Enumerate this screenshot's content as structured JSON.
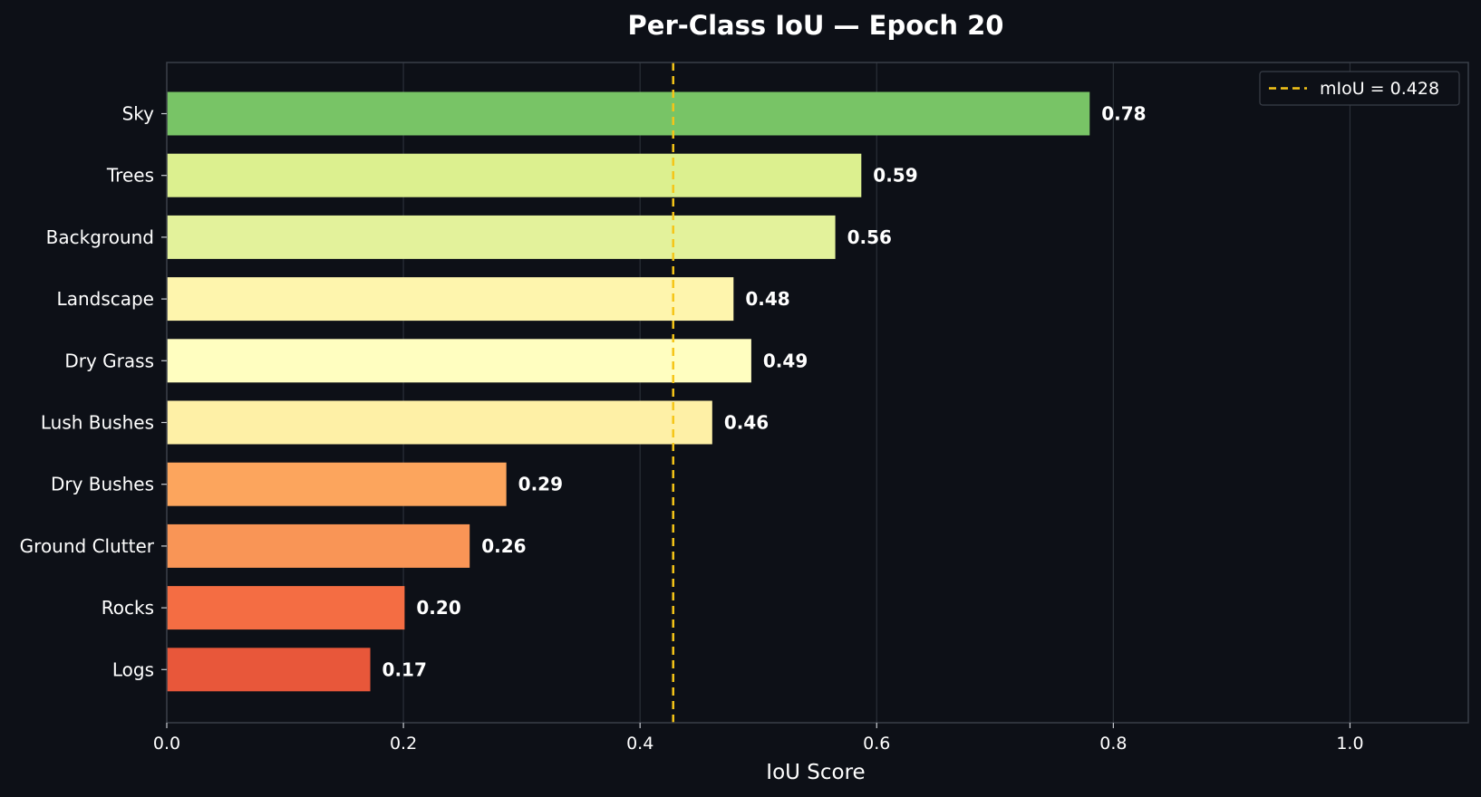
{
  "chart_data": {
    "type": "bar",
    "orientation": "horizontal",
    "title": "Per-Class IoU — Epoch 20",
    "xlabel": "IoU Score",
    "ylabel": "",
    "xlim": [
      0,
      1.1
    ],
    "xticks": [
      0.0,
      0.2,
      0.4,
      0.6,
      0.8,
      1.0
    ],
    "xtick_labels": [
      "0.0",
      "0.2",
      "0.4",
      "0.6",
      "0.8",
      "1.0"
    ],
    "grid": "vertical",
    "categories": [
      "Sky",
      "Trees",
      "Background",
      "Landscape",
      "Dry Grass",
      "Lush Bushes",
      "Dry Bushes",
      "Ground Clutter",
      "Rocks",
      "Logs"
    ],
    "values": [
      0.78,
      0.587,
      0.565,
      0.479,
      0.494,
      0.461,
      0.287,
      0.256,
      0.201,
      0.172
    ],
    "value_labels": [
      "0.78",
      "0.59",
      "0.56",
      "0.48",
      "0.49",
      "0.46",
      "0.29",
      "0.26",
      "0.20",
      "0.17"
    ],
    "bar_colors": [
      "#78c466",
      "#dcf08f",
      "#e3f29b",
      "#fef5ad",
      "#fffec0",
      "#fef0a6",
      "#fca55d",
      "#f99556",
      "#f46d43",
      "#e8573a"
    ],
    "reference_line": {
      "value": 0.428,
      "label": "mIoU = 0.428",
      "color": "#f5c518",
      "style": "dashed"
    },
    "legend": {
      "position": "top-right",
      "entries": [
        "mIoU = 0.428"
      ]
    },
    "colors": {
      "background": "#0d1017",
      "text": "#ffffff",
      "axis": "#3a3f48",
      "grid": "#2a2f38"
    }
  }
}
